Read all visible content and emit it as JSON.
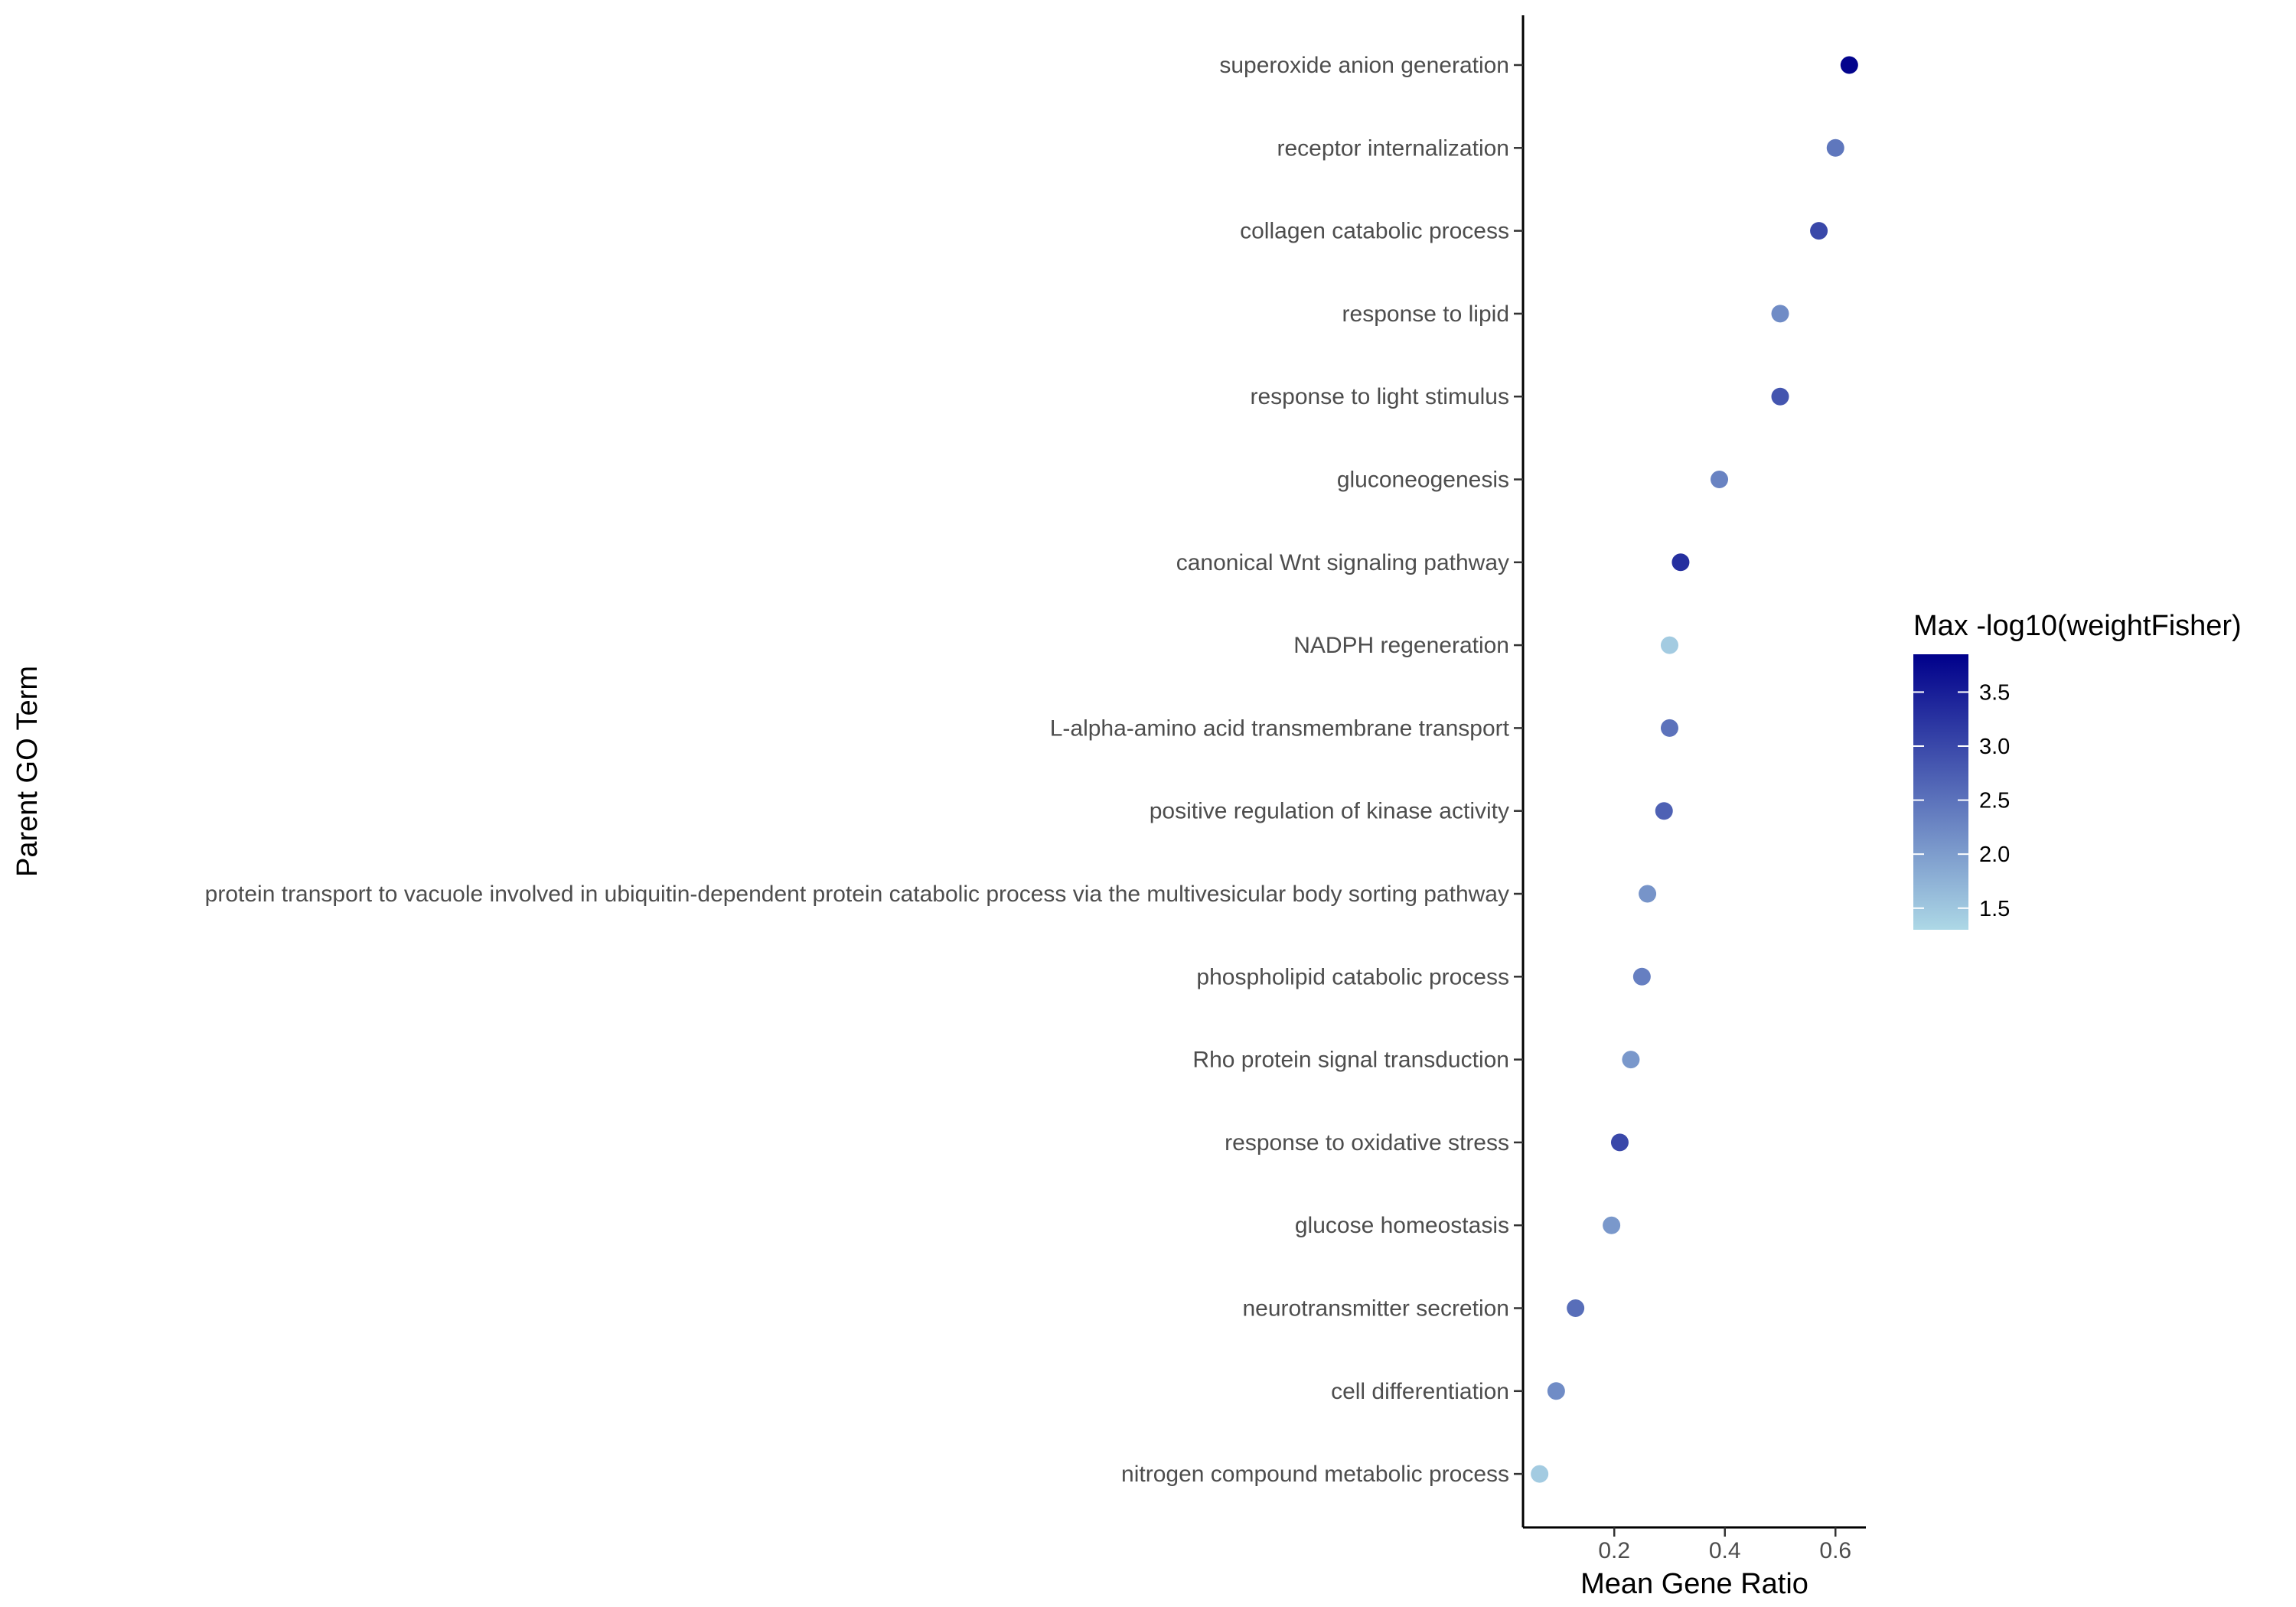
{
  "chart_data": {
    "type": "scatter",
    "title": "",
    "xlabel": "Mean Gene Ratio",
    "ylabel": "Parent GO Term",
    "xlim": [
      0.035,
      0.655
    ],
    "xticks": [
      0.2,
      0.4,
      0.6
    ],
    "xtick_labels": [
      "0.2",
      "0.4",
      "0.6"
    ],
    "grid": false,
    "legend": {
      "title": "Max -log10(weightFisher)",
      "placement": "right",
      "range": [
        1.3,
        3.85
      ],
      "ticks": [
        1.5,
        2.0,
        2.5,
        3.0,
        3.5
      ],
      "tick_labels": [
        "1.5",
        "2.0",
        "2.5",
        "3.0",
        "3.5"
      ],
      "low_color": "#add8e6",
      "high_color": "#00008b"
    },
    "points": [
      {
        "term": "superoxide anion generation",
        "x": 0.625,
        "color_value": 3.8
      },
      {
        "term": "receptor internalization",
        "x": 0.6,
        "color_value": 2.45
      },
      {
        "term": "collagen catabolic process",
        "x": 0.57,
        "color_value": 3.0
      },
      {
        "term": "response to lipid",
        "x": 0.5,
        "color_value": 2.2
      },
      {
        "term": "response to light stimulus",
        "x": 0.5,
        "color_value": 2.85
      },
      {
        "term": "gluconeogenesis",
        "x": 0.39,
        "color_value": 2.3
      },
      {
        "term": "canonical Wnt signaling pathway",
        "x": 0.32,
        "color_value": 3.3
      },
      {
        "term": "NADPH regeneration",
        "x": 0.3,
        "color_value": 1.45
      },
      {
        "term": "L-alpha-amino acid transmembrane transport",
        "x": 0.3,
        "color_value": 2.5
      },
      {
        "term": "positive regulation of kinase activity",
        "x": 0.29,
        "color_value": 2.7
      },
      {
        "term": "protein transport to vacuole involved in ubiquitin-dependent protein catabolic process via the multivesicular body sorting pathway",
        "x": 0.26,
        "color_value": 2.1
      },
      {
        "term": "phospholipid catabolic process",
        "x": 0.25,
        "color_value": 2.35
      },
      {
        "term": "Rho protein signal transduction",
        "x": 0.23,
        "color_value": 2.05
      },
      {
        "term": "response to oxidative stress",
        "x": 0.21,
        "color_value": 3.0
      },
      {
        "term": "glucose homeostasis",
        "x": 0.195,
        "color_value": 2.05
      },
      {
        "term": "neurotransmitter secretion",
        "x": 0.13,
        "color_value": 2.55
      },
      {
        "term": "cell differentiation",
        "x": 0.095,
        "color_value": 2.2
      },
      {
        "term": "nitrogen compound metabolic process",
        "x": 0.065,
        "color_value": 1.45
      }
    ]
  }
}
